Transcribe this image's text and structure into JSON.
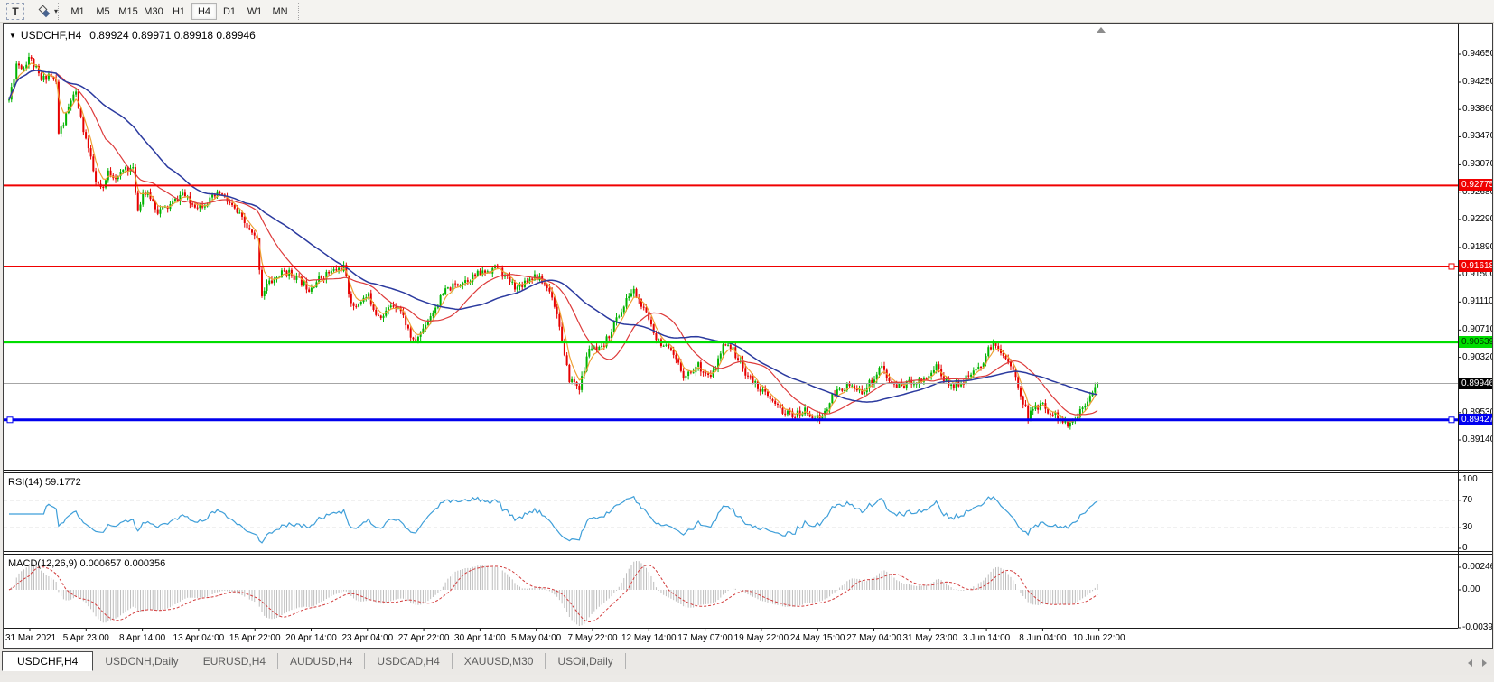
{
  "toolbar": {
    "text_tool_label": "T",
    "timeframes": [
      "M1",
      "M5",
      "M15",
      "M30",
      "H1",
      "H4",
      "D1",
      "W1",
      "MN"
    ],
    "active_timeframe": "H4"
  },
  "chart": {
    "symbol_period": "USDCHF,H4",
    "ohlc": "0.89924 0.89971 0.89918 0.89946"
  },
  "panes": {
    "rsi": {
      "label": "RSI(14) 59.1772",
      "levels": [
        "100",
        "70",
        "30",
        "0"
      ],
      "level_values": [
        100,
        70,
        30,
        0
      ]
    },
    "macd": {
      "label": "MACD(12,26,9) 0.000657 0.000356",
      "levels": [
        "0.002465",
        "0.00",
        "-0.003939"
      ]
    }
  },
  "price_axis": {
    "ticks": [
      "0.94650",
      "0.94250",
      "0.93860",
      "0.93470",
      "0.93070",
      "0.92680",
      "0.92290",
      "0.91890",
      "0.91500",
      "0.91110",
      "0.90710",
      "0.90320",
      "0.89530",
      "0.89140"
    ],
    "tags": [
      {
        "value": "0.92775",
        "price": 0.92775,
        "bg": "#f00000",
        "fg": "#ffffff"
      },
      {
        "value": "0.91618",
        "price": 0.91618,
        "bg": "#f00000",
        "fg": "#ffffff"
      },
      {
        "value": "0.90539",
        "price": 0.90539,
        "bg": "#00dd00",
        "fg": "#003300"
      },
      {
        "value": "0.89946",
        "price": 0.89946,
        "bg": "#000000",
        "fg": "#ffffff"
      },
      {
        "value": "0.89427",
        "price": 0.89427,
        "bg": "#0000ee",
        "fg": "#ffffff"
      }
    ]
  },
  "date_axis": [
    "31 Mar 2021",
    "5 Apr 23:00",
    "8 Apr 14:00",
    "13 Apr 04:00",
    "15 Apr 22:00",
    "20 Apr 14:00",
    "23 Apr 04:00",
    "27 Apr 22:00",
    "30 Apr 14:00",
    "5 May 04:00",
    "7 May 22:00",
    "12 May 14:00",
    "17 May 07:00",
    "19 May 22:00",
    "24 May 15:00",
    "27 May 04:00",
    "31 May 23:00",
    "3 Jun 14:00",
    "8 Jun 04:00",
    "10 Jun 22:00"
  ],
  "tabs": {
    "items": [
      {
        "label": "USDCHF,H4",
        "active": true
      },
      {
        "label": "USDCNH,Daily",
        "active": false
      },
      {
        "label": "EURUSD,H4",
        "active": false
      },
      {
        "label": "AUDUSD,H4",
        "active": false
      },
      {
        "label": "USDCAD,H4",
        "active": false
      },
      {
        "label": "XAUUSD,M30",
        "active": false
      },
      {
        "label": "USOil,Daily",
        "active": false
      }
    ]
  },
  "chart_data": {
    "type": "candlestick",
    "symbol": "USDCHF",
    "timeframe": "H4",
    "title": "USDCHF,H4  0.89924 0.89971 0.89918 0.89946",
    "open": 0.89924,
    "high": 0.89971,
    "low": 0.89918,
    "close": 0.89946,
    "current_price": 0.89946,
    "y_axis_range": [
      0.8906,
      0.9506
    ],
    "bars": 440,
    "grid": false,
    "indicators": {
      "rsi": {
        "period": 14,
        "value": 59.1772,
        "overbought": 70,
        "oversold": 30
      },
      "macd": {
        "fast": 12,
        "slow": 26,
        "signal": 9,
        "main_value": 0.000657,
        "signal_value": 0.000356,
        "scale_max": 0.002465,
        "scale_min": -0.003939
      }
    },
    "horizontal_lines": [
      {
        "price": 0.92775,
        "color": "#f00000",
        "width": 2,
        "handles": []
      },
      {
        "price": 0.91618,
        "color": "#f00000",
        "width": 2,
        "handles": [
          1600
        ]
      },
      {
        "price": 0.90539,
        "color": "#00dd00",
        "width": 3,
        "handles": []
      },
      {
        "price": 0.89427,
        "color": "#0000ee",
        "width": 3,
        "handles": [
          4,
          1600
        ]
      }
    ],
    "colors": {
      "bull": "#00b400",
      "bear": "#e60000",
      "ma_fast": "#eea033",
      "ma_mid": "#dd3b3b",
      "ma_slow": "#2b3a9f",
      "rsi_line": "#3f9fd9",
      "level_dash": "#c4c4c4",
      "macd_hist": "#bdbdbd",
      "macd_signal": "#d23b3b",
      "current_price_line": "#a6a6a6"
    },
    "price_anchors": [
      [
        0,
        0.94
      ],
      [
        3,
        0.9452
      ],
      [
        6,
        0.9446
      ],
      [
        8,
        0.9462
      ],
      [
        11,
        0.9443
      ],
      [
        13,
        0.9427
      ],
      [
        16,
        0.9437
      ],
      [
        19,
        0.9424
      ],
      [
        20,
        0.9352
      ],
      [
        22,
        0.9366
      ],
      [
        25,
        0.94
      ],
      [
        27,
        0.9407
      ],
      [
        29,
        0.9372
      ],
      [
        32,
        0.933
      ],
      [
        35,
        0.9281
      ],
      [
        38,
        0.927
      ],
      [
        40,
        0.9297
      ],
      [
        44,
        0.9288
      ],
      [
        47,
        0.9304
      ],
      [
        50,
        0.9299
      ],
      [
        52,
        0.9242
      ],
      [
        54,
        0.9268
      ],
      [
        57,
        0.9261
      ],
      [
        60,
        0.9241
      ],
      [
        64,
        0.9246
      ],
      [
        68,
        0.9259
      ],
      [
        70,
        0.9267
      ],
      [
        73,
        0.9252
      ],
      [
        77,
        0.9249
      ],
      [
        81,
        0.9256
      ],
      [
        85,
        0.9267
      ],
      [
        89,
        0.9251
      ],
      [
        93,
        0.9234
      ],
      [
        97,
        0.9212
      ],
      [
        100,
        0.9199
      ],
      [
        102,
        0.9122
      ],
      [
        104,
        0.9136
      ],
      [
        107,
        0.9143
      ],
      [
        111,
        0.9155
      ],
      [
        114,
        0.9151
      ],
      [
        118,
        0.9139
      ],
      [
        121,
        0.9131
      ],
      [
        125,
        0.9144
      ],
      [
        128,
        0.9151
      ],
      [
        132,
        0.9157
      ],
      [
        135,
        0.9161
      ],
      [
        137,
        0.9126
      ],
      [
        139,
        0.9101
      ],
      [
        142,
        0.9114
      ],
      [
        145,
        0.9119
      ],
      [
        148,
        0.9096
      ],
      [
        151,
        0.9091
      ],
      [
        154,
        0.9107
      ],
      [
        157,
        0.9107
      ],
      [
        160,
        0.9081
      ],
      [
        163,
        0.9053
      ],
      [
        166,
        0.9066
      ],
      [
        168,
        0.9081
      ],
      [
        172,
        0.9104
      ],
      [
        176,
        0.9127
      ],
      [
        180,
        0.9135
      ],
      [
        183,
        0.9141
      ],
      [
        187,
        0.9147
      ],
      [
        190,
        0.9152
      ],
      [
        194,
        0.9157
      ],
      [
        197,
        0.9161
      ],
      [
        200,
        0.9147
      ],
      [
        205,
        0.9131
      ],
      [
        208,
        0.9141
      ],
      [
        212,
        0.9149
      ],
      [
        216,
        0.9137
      ],
      [
        219,
        0.9121
      ],
      [
        222,
        0.9079
      ],
      [
        224,
        0.9031
      ],
      [
        226,
        0.9001
      ],
      [
        228,
        0.8996
      ],
      [
        230,
        0.8989
      ],
      [
        232,
        0.9014
      ],
      [
        234,
        0.9047
      ],
      [
        237,
        0.9041
      ],
      [
        239,
        0.9043
      ],
      [
        242,
        0.9064
      ],
      [
        245,
        0.9087
      ],
      [
        248,
        0.9104
      ],
      [
        250,
        0.9121
      ],
      [
        252,
        0.9127
      ],
      [
        256,
        0.9099
      ],
      [
        259,
        0.9079
      ],
      [
        261,
        0.9061
      ],
      [
        264,
        0.9049
      ],
      [
        267,
        0.9037
      ],
      [
        270,
        0.9021
      ],
      [
        272,
        0.9007
      ],
      [
        275,
        0.9011
      ],
      [
        278,
        0.9021
      ],
      [
        280,
        0.9013
      ],
      [
        283,
        0.9001
      ],
      [
        286,
        0.9027
      ],
      [
        289,
        0.9055
      ],
      [
        291,
        0.9047
      ],
      [
        294,
        0.9031
      ],
      [
        296,
        0.9016
      ],
      [
        299,
        0.9001
      ],
      [
        302,
        0.8991
      ],
      [
        305,
        0.8979
      ],
      [
        308,
        0.8967
      ],
      [
        310,
        0.8961
      ],
      [
        313,
        0.8953
      ],
      [
        316,
        0.8949
      ],
      [
        319,
        0.8951
      ],
      [
        321,
        0.8956
      ],
      [
        324,
        0.8949
      ],
      [
        327,
        0.8944
      ],
      [
        330,
        0.8959
      ],
      [
        332,
        0.8975
      ],
      [
        335,
        0.8987
      ],
      [
        338,
        0.8991
      ],
      [
        341,
        0.8986
      ],
      [
        343,
        0.8981
      ],
      [
        346,
        0.8991
      ],
      [
        349,
        0.9003
      ],
      [
        352,
        0.9021
      ],
      [
        354,
        0.9001
      ],
      [
        358,
        0.8991
      ],
      [
        361,
        0.8993
      ],
      [
        364,
        0.8997
      ],
      [
        367,
        0.8999
      ],
      [
        370,
        0.9003
      ],
      [
        372,
        0.9011
      ],
      [
        374,
        0.9021
      ],
      [
        377,
        0.9001
      ],
      [
        380,
        0.8991
      ],
      [
        383,
        0.8996
      ],
      [
        386,
        0.9001
      ],
      [
        388,
        0.9007
      ],
      [
        390,
        0.9011
      ],
      [
        393,
        0.9027
      ],
      [
        396,
        0.9049
      ],
      [
        398,
        0.9047
      ],
      [
        400,
        0.9043
      ],
      [
        403,
        0.9027
      ],
      [
        405,
        0.9011
      ],
      [
        408,
        0.8981
      ],
      [
        411,
        0.8947
      ],
      [
        413,
        0.8957
      ],
      [
        416,
        0.8965
      ],
      [
        419,
        0.8957
      ],
      [
        422,
        0.8949
      ],
      [
        425,
        0.8941
      ],
      [
        427,
        0.8933
      ],
      [
        430,
        0.8944
      ],
      [
        433,
        0.8961
      ],
      [
        435,
        0.8974
      ],
      [
        437,
        0.8987
      ],
      [
        439,
        0.8994
      ]
    ]
  }
}
